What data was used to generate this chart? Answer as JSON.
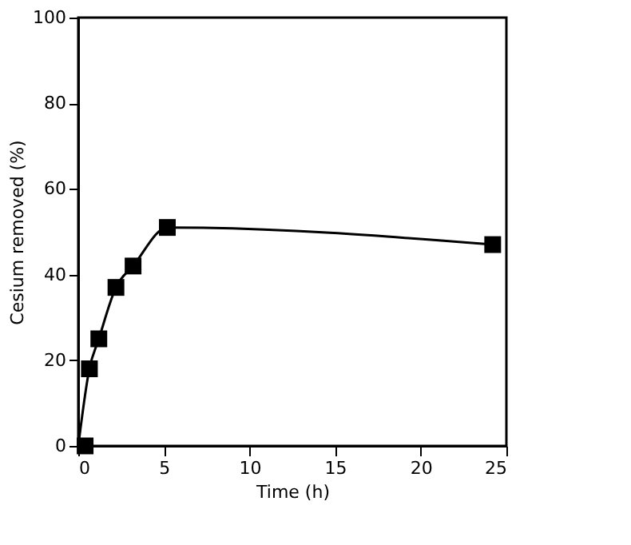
{
  "chart_data": {
    "type": "line",
    "xlabel": "Time (h)",
    "ylabel": "Cesium removed (%)",
    "xlim": [
      0,
      25
    ],
    "xticks": [
      0,
      5,
      10,
      15,
      20,
      25
    ],
    "ylim": [
      0,
      100
    ],
    "yticks": [
      0,
      20,
      40,
      60,
      80,
      100
    ],
    "grid": false,
    "series": [
      {
        "color": "#000000",
        "marker": "none",
        "x": [
          0,
          0.65,
          1.2,
          2.2,
          3.2,
          5.2,
          24.2
        ],
        "values": [
          0,
          18,
          25,
          37,
          42,
          51,
          47
        ]
      },
      {
        "type": "scatter",
        "color": "#000000",
        "marker": "square",
        "x": [
          0.4,
          0.65,
          1.2,
          2.2,
          3.2,
          5.2,
          24.2
        ],
        "values": [
          0,
          18,
          25,
          37,
          42,
          51,
          47
        ]
      }
    ]
  }
}
